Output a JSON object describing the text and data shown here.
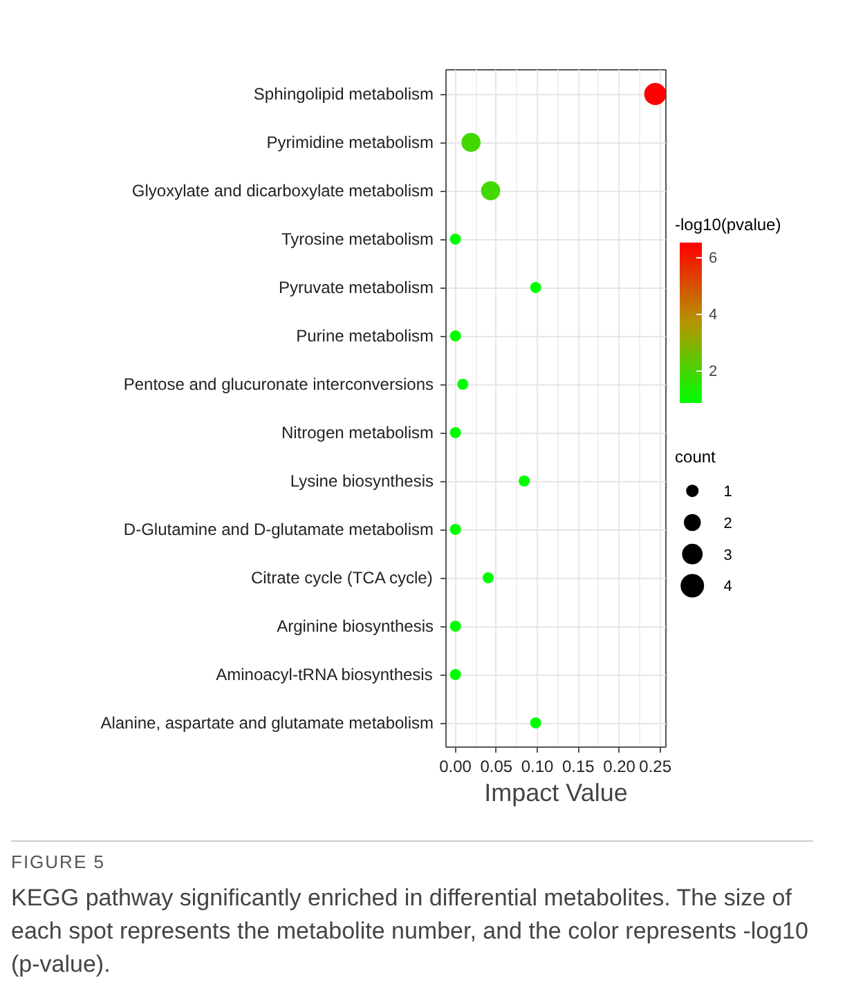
{
  "chart_data": {
    "type": "bubble",
    "orientation": "horizontal",
    "categories": [
      "Sphingolipid metabolism",
      "Pyrimidine metabolism",
      "Glyoxylate and dicarboxylate metabolism",
      "Tyrosine metabolism",
      "Pyruvate metabolism",
      "Purine metabolism",
      "Pentose and glucuronate interconversions",
      "Nitrogen metabolism",
      "Lysine biosynthesis",
      "D-Glutamine and D-glutamate metabolism",
      "Citrate cycle (TCA cycle)",
      "Arginine biosynthesis",
      "Aminoacyl-tRNA biosynthesis",
      "Alanine, aspartate and glutamate metabolism"
    ],
    "values": [
      0.244,
      0.019,
      0.043,
      0.0,
      0.098,
      0.0,
      0.009,
      0.0,
      0.084,
      0.0,
      0.04,
      0.0,
      0.0,
      0.098
    ],
    "sizes": [
      4,
      3,
      3,
      1,
      1,
      1,
      1,
      1,
      1,
      1,
      1,
      1,
      1,
      1
    ],
    "cvalues": [
      6.5,
      1.9,
      1.9,
      0.9,
      0.9,
      0.9,
      0.9,
      0.9,
      0.9,
      0.9,
      0.9,
      0.9,
      0.9,
      0.9
    ],
    "size_legend": [
      1,
      2,
      3,
      4
    ],
    "xlabel": "Impact Value",
    "legend_title": "count",
    "clabel": "-log10(pvalue)",
    "xlim": [
      -0.0115,
      0.257
    ],
    "xticks": [
      {
        "value": 0,
        "label": "0.00"
      },
      {
        "value": 0.05,
        "label": "0.05"
      },
      {
        "value": 0.1,
        "label": "0.10"
      },
      {
        "value": 0.15,
        "label": "0.15"
      },
      {
        "value": 0.2,
        "label": "0.20"
      },
      {
        "value": 0.25,
        "label": "0.25"
      }
    ],
    "clim": [
      0.86,
      6.52
    ],
    "cticks": [
      2,
      4,
      6
    ],
    "grid": true,
    "annotations": [
      "FIGURE 5",
      "KEGG pathway significantly enriched in differential metabolites. The size of each spot represents the metabolite number, and the color represents -log10 (p-value)."
    ]
  }
}
